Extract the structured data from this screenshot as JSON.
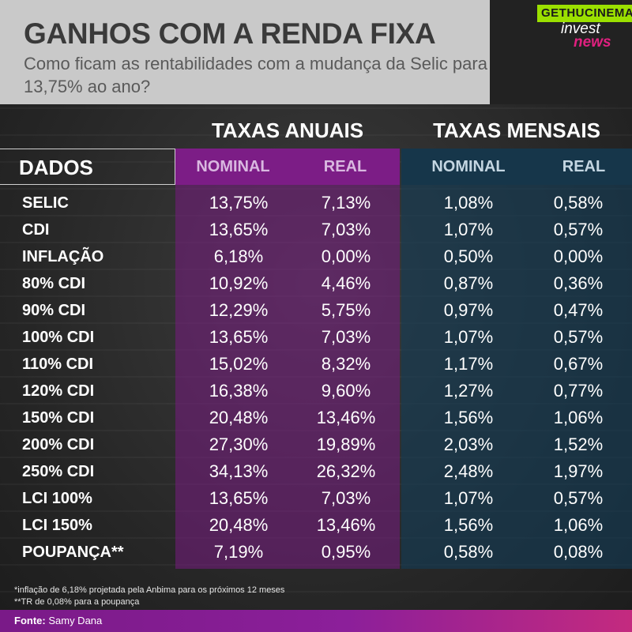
{
  "header": {
    "title": "GANHOS COM A RENDA FIXA",
    "subtitle": "Como ficam as rentabilidades com a mudança da Selic para 13,75% ao ano?"
  },
  "logo": {
    "badge": "GETHUCINEMA",
    "line1": "invest",
    "line2": "news"
  },
  "table": {
    "group_annual": "TAXAS ANUAIS",
    "group_monthly": "TAXAS MENSAIS",
    "label_col": "DADOS",
    "col_nominal": "NOMINAL",
    "col_real": "REAL",
    "rows": [
      {
        "name": "SELIC",
        "nom_a": "13,75%",
        "real_a": "7,13%",
        "nom_m": "1,08%",
        "real_m": "0,58%"
      },
      {
        "name": "CDI",
        "nom_a": "13,65%",
        "real_a": "7,03%",
        "nom_m": "1,07%",
        "real_m": "0,57%"
      },
      {
        "name": "INFLAÇÃO",
        "nom_a": "6,18%",
        "real_a": "0,00%",
        "nom_m": "0,50%",
        "real_m": "0,00%"
      },
      {
        "name": "80% CDI",
        "nom_a": "10,92%",
        "real_a": "4,46%",
        "nom_m": "0,87%",
        "real_m": "0,36%"
      },
      {
        "name": "90% CDI",
        "nom_a": "12,29%",
        "real_a": "5,75%",
        "nom_m": "0,97%",
        "real_m": "0,47%"
      },
      {
        "name": "100% CDI",
        "nom_a": "13,65%",
        "real_a": "7,03%",
        "nom_m": "1,07%",
        "real_m": "0,57%"
      },
      {
        "name": "110% CDI",
        "nom_a": "15,02%",
        "real_a": "8,32%",
        "nom_m": "1,17%",
        "real_m": "0,67%"
      },
      {
        "name": "120% CDI",
        "nom_a": "16,38%",
        "real_a": "9,60%",
        "nom_m": "1,27%",
        "real_m": "0,77%"
      },
      {
        "name": "150% CDI",
        "nom_a": "20,48%",
        "real_a": "13,46%",
        "nom_m": "1,56%",
        "real_m": "1,06%"
      },
      {
        "name": "200% CDI",
        "nom_a": "27,30%",
        "real_a": "19,89%",
        "nom_m": "2,03%",
        "real_m": "1,52%"
      },
      {
        "name": "250% CDI",
        "nom_a": "34,13%",
        "real_a": "26,32%",
        "nom_m": "2,48%",
        "real_m": "1,97%"
      },
      {
        "name": "LCI 100%",
        "nom_a": "13,65%",
        "real_a": "7,03%",
        "nom_m": "1,07%",
        "real_m": "0,57%"
      },
      {
        "name": "LCI 150%",
        "nom_a": "20,48%",
        "real_a": "13,46%",
        "nom_m": "1,56%",
        "real_m": "1,06%"
      },
      {
        "name": "POUPANÇA**",
        "nom_a": "7,19%",
        "real_a": "0,95%",
        "nom_m": "0,58%",
        "real_m": "0,08%"
      }
    ]
  },
  "notes": {
    "note1": "*inflação de 6,18% projetada pela Anbima para os próximos 12 meses",
    "note2": "**TR de 0,08% para a poupança"
  },
  "footer": {
    "source_label": "Fonte:",
    "source_value": "Samy Dana"
  },
  "colors": {
    "annual_band": "#7c1d86",
    "monthly_band": "#16364a",
    "footer_accent": "#8c1f9a"
  }
}
